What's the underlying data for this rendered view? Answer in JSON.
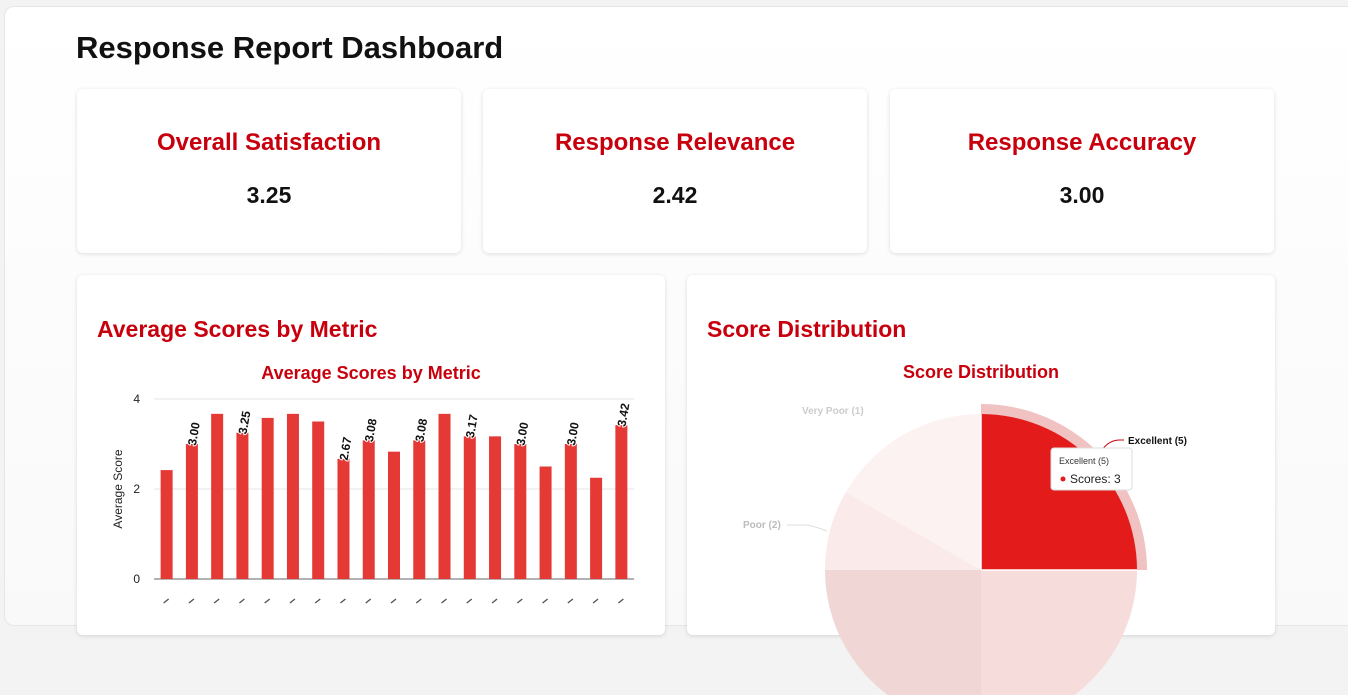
{
  "dashboard": {
    "title": "Response Report Dashboard"
  },
  "kpis": [
    {
      "label": "Overall Satisfaction",
      "value": "3.25"
    },
    {
      "label": "Response Relevance",
      "value": "2.42"
    },
    {
      "label": "Response Accuracy",
      "value": "3.00"
    }
  ],
  "colors": {
    "accent": "#c8000d",
    "bar": "#e53935"
  },
  "charts": {
    "bar_card_title": "Average Scores by Metric",
    "pie_card_title": "Score Distribution"
  },
  "chart_data": [
    {
      "type": "bar",
      "title": "Average Scores by Metric",
      "ylabel": "Average Score",
      "xlabel": "",
      "ylim": [
        0,
        4
      ],
      "yticks": [
        0,
        2,
        4
      ],
      "grid": true,
      "values": [
        2.42,
        3.0,
        3.67,
        3.25,
        3.58,
        3.67,
        3.5,
        2.67,
        3.08,
        2.83,
        3.08,
        3.67,
        3.17,
        3.17,
        3.0,
        2.5,
        3.0,
        2.25,
        3.42
      ],
      "data_labels": [
        "",
        "3.00",
        "",
        "3.25",
        "",
        "",
        "",
        "2.67",
        "3.08",
        "",
        "3.08",
        "",
        "3.17",
        "",
        "3.00",
        "",
        "3.00",
        "",
        "3.42"
      ]
    },
    {
      "type": "pie",
      "title": "Score Distribution",
      "labels": [
        "Excellent (5)",
        "Very Poor (1)",
        "Poor (2)"
      ],
      "label_colors": [
        "#111111",
        "#cccccc",
        "#bbbbbb"
      ],
      "slice_colors": [
        "#e41b1b",
        "#f1d6d6",
        "#fbeaea",
        "#fdf2f2",
        "#f7dcdc"
      ],
      "tooltip": {
        "title": "Excellent (5)",
        "text": "Scores: 3"
      }
    }
  ]
}
